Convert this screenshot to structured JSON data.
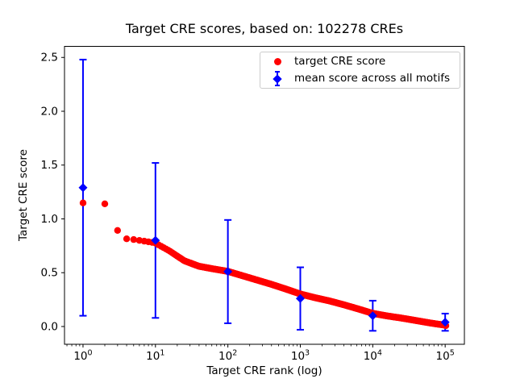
{
  "chart_data": {
    "type": "scatter",
    "title": "Target CRE scores, based on: 102278 CREs",
    "xlabel": "Target CRE rank (log)",
    "ylabel": "Target CRE score",
    "xscale": "log",
    "xlim_log10": [
      -0.2556,
      5.2654
    ],
    "ylim": [
      -0.165,
      2.603
    ],
    "x_tick_exponents": [
      0,
      1,
      2,
      3,
      4,
      5
    ],
    "x_tick_labels": [
      "10⁰",
      "10¹",
      "10²",
      "10³",
      "10⁴",
      "10⁵"
    ],
    "y_ticks": [
      0.0,
      0.5,
      1.0,
      1.5,
      2.0,
      2.5
    ],
    "y_tick_labels": [
      "0.0",
      "0.5",
      "1.0",
      "1.5",
      "2.0",
      "2.5"
    ],
    "grid": false,
    "legend_position": "upper right",
    "series": [
      {
        "name": "target CRE score",
        "type": "scatter",
        "marker": "circle",
        "color": "#ff0000",
        "n_points_label": "102278 CREs",
        "curve_log10_anchors": [
          [
            0.0,
            1.148
          ],
          [
            0.301,
            1.14
          ],
          [
            0.477,
            0.893
          ],
          [
            0.602,
            0.815
          ],
          [
            0.699,
            0.808
          ],
          [
            0.778,
            0.8
          ],
          [
            0.845,
            0.793
          ],
          [
            0.903,
            0.787
          ],
          [
            0.954,
            0.781
          ],
          [
            1.0,
            0.775
          ],
          [
            1.2,
            0.7
          ],
          [
            1.4,
            0.61
          ],
          [
            1.6,
            0.56
          ],
          [
            1.8,
            0.535
          ],
          [
            2.0,
            0.512
          ],
          [
            2.2,
            0.472
          ],
          [
            2.4,
            0.432
          ],
          [
            2.6,
            0.392
          ],
          [
            2.8,
            0.348
          ],
          [
            3.0,
            0.302
          ],
          [
            3.2,
            0.268
          ],
          [
            3.4,
            0.238
          ],
          [
            3.6,
            0.202
          ],
          [
            3.8,
            0.163
          ],
          [
            4.0,
            0.122
          ],
          [
            4.2,
            0.098
          ],
          [
            4.4,
            0.078
          ],
          [
            4.6,
            0.055
          ],
          [
            4.8,
            0.032
          ],
          [
            5.0,
            0.012
          ],
          [
            5.0098,
            0.008
          ]
        ]
      },
      {
        "name": "mean score across all motifs",
        "type": "errorbar",
        "marker": "diamond",
        "color": "#0000ff",
        "x": [
          1,
          10,
          100,
          1000,
          10000,
          100000
        ],
        "mean": [
          1.29,
          0.8,
          0.51,
          0.26,
          0.1,
          0.04
        ],
        "yerr": [
          1.19,
          0.72,
          0.48,
          0.29,
          0.14,
          0.08
        ]
      }
    ]
  }
}
